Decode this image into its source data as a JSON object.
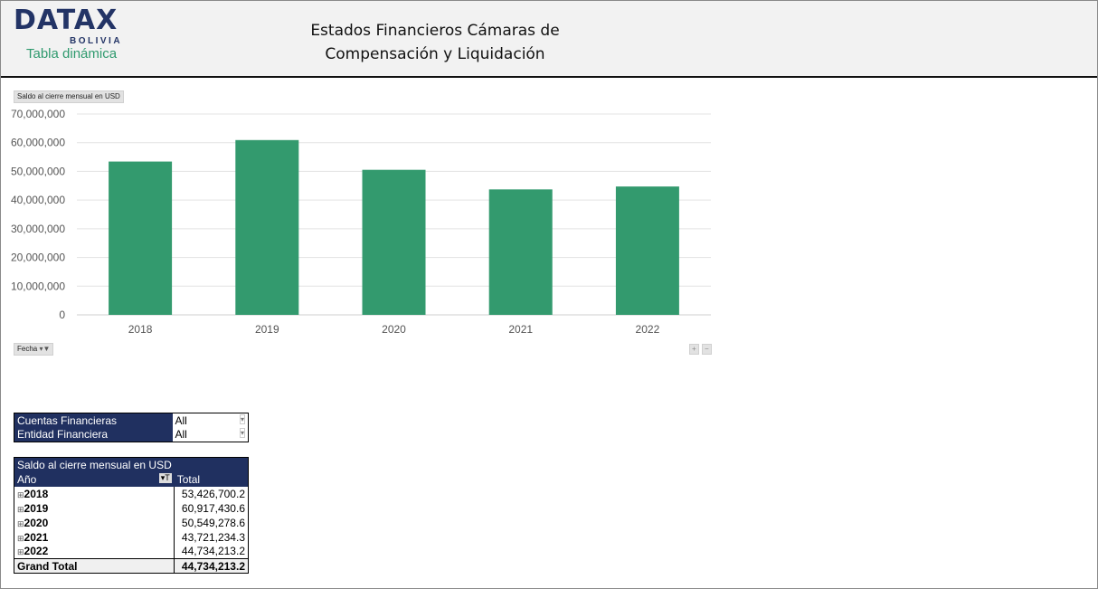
{
  "header": {
    "logo": "DATAX",
    "logo_sub": "BOLIVIA",
    "subtitle": "Tabla dinámica",
    "title_line1": "Estados Financieros Cámaras de",
    "title_line2": "Compensación y Liquidación"
  },
  "chart_controls": {
    "value_field": "Saldo al cierre mensual en USD",
    "axis_field": "Fecha",
    "expand": "+",
    "collapse": "−"
  },
  "chart_data": {
    "type": "bar",
    "categories": [
      "2018",
      "2019",
      "2020",
      "2021",
      "2022"
    ],
    "values": [
      53426700.2,
      60917430.6,
      50549278.6,
      43721234.3,
      44734213.2
    ],
    "ylim": [
      0,
      70000000
    ],
    "yticks": [
      "0",
      "10,000,000",
      "20,000,000",
      "30,000,000",
      "40,000,000",
      "50,000,000",
      "60,000,000",
      "70,000,000"
    ],
    "grid": true,
    "color": "#339a6e"
  },
  "filters": [
    {
      "label": "Cuentas Financieras",
      "value": "All"
    },
    {
      "label": "Entidad Financiera",
      "value": "All"
    }
  ],
  "pivot": {
    "title": "Saldo al cierre mensual en USD",
    "row_header": "Año",
    "col_header": "Total",
    "rows": [
      {
        "year": "2018",
        "total": "53,426,700.2"
      },
      {
        "year": "2019",
        "total": "60,917,430.6"
      },
      {
        "year": "2020",
        "total": "50,549,278.6"
      },
      {
        "year": "2021",
        "total": "43,721,234.3"
      },
      {
        "year": "2022",
        "total": "44,734,213.2"
      }
    ],
    "grand_total_label": "Grand Total",
    "grand_total": "44,734,213.2"
  }
}
